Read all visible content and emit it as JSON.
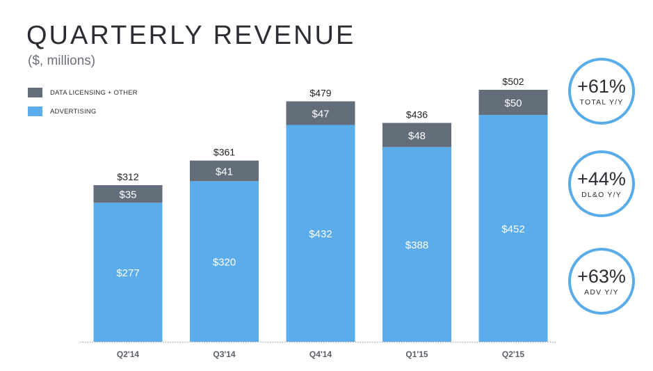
{
  "header": {
    "title": "QUARTERLY REVENUE",
    "subtitle": "($, millions)"
  },
  "legend": {
    "items": [
      {
        "label": "DATA LICENSING + OTHER",
        "color": "#646e7a"
      },
      {
        "label": "ADVERTISING",
        "color": "#5aaceb"
      }
    ]
  },
  "chart_data": {
    "type": "bar",
    "stacked": true,
    "title": "QUARTERLY REVENUE",
    "subtitle": "($, millions)",
    "categories": [
      "Q2'14",
      "Q3'14",
      "Q4'14",
      "Q1'15",
      "Q2'15"
    ],
    "series": [
      {
        "name": "ADVERTISING",
        "values": [
          277,
          320,
          432,
          388,
          452
        ],
        "labels": [
          "$277",
          "$320",
          "$432",
          "$388",
          "$452"
        ],
        "color": "#5aaceb"
      },
      {
        "name": "DATA LICENSING + OTHER",
        "values": [
          35,
          41,
          47,
          48,
          50
        ],
        "labels": [
          "$35",
          "$41",
          "$47",
          "$48",
          "$50"
        ],
        "color": "#646e7a"
      }
    ],
    "totals": [
      312,
      361,
      479,
      436,
      502
    ],
    "total_labels": [
      "$312",
      "$361",
      "$479",
      "$436",
      "$502"
    ],
    "xlabel": "",
    "ylabel": "",
    "ylim": [
      0,
      502
    ],
    "grid": false,
    "legend": "top-left"
  },
  "kpis": [
    {
      "value": "+61%",
      "label": "TOTAL Y/Y"
    },
    {
      "value": "+44%",
      "label": "DL&O Y/Y"
    },
    {
      "value": "+63%",
      "label": "ADV Y/Y"
    }
  ],
  "colors": {
    "advertising": "#5aaceb",
    "data_licensing": "#646e7a",
    "accent": "#5aace9",
    "text": "#2b2d33",
    "baseline": "#9aa0a8"
  }
}
